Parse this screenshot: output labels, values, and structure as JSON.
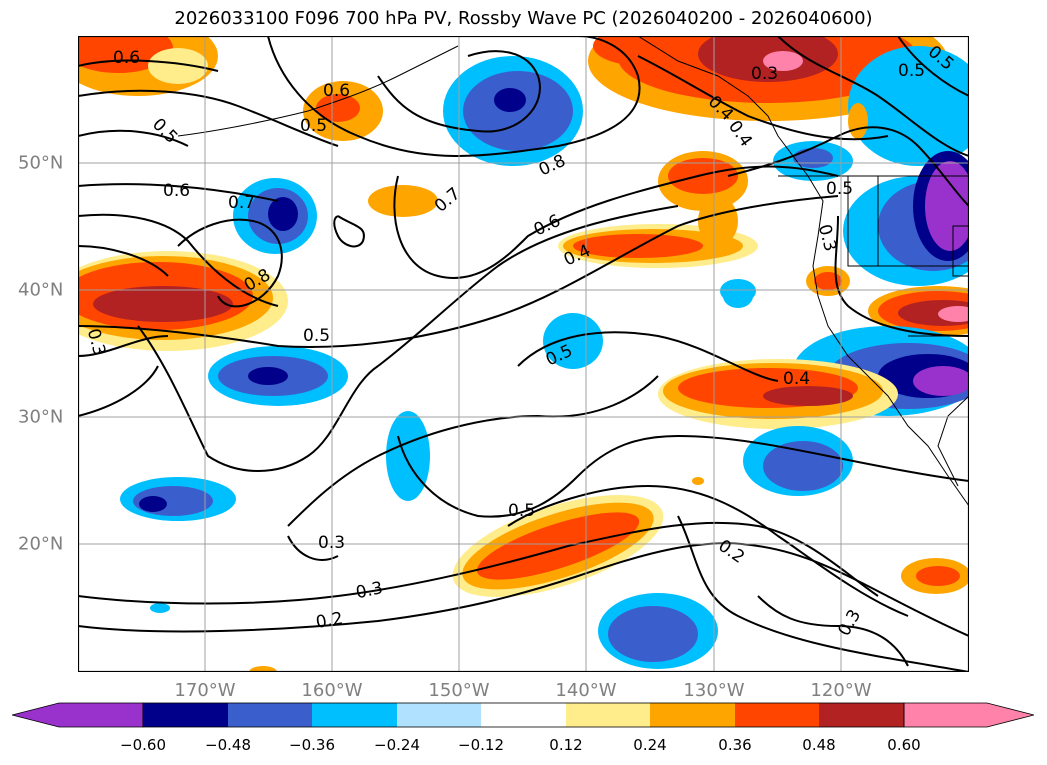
{
  "title": "2026033100 F096 700 hPa PV, Rossby Wave PC (2026040200 - 2026040600)",
  "lon_labels": [
    "170°W",
    "160°W",
    "150°W",
    "140°W",
    "130°W",
    "120°W"
  ],
  "lat_labels": [
    "50°N",
    "40°N",
    "30°N",
    "20°N"
  ],
  "colorbar": {
    "ticks": [
      "−0.60",
      "−0.48",
      "−0.36",
      "−0.24",
      "−0.12",
      "0.12",
      "0.24",
      "0.36",
      "0.48",
      "0.60"
    ],
    "colors": [
      "#9932cc",
      "#00008b",
      "#3a5fcd",
      "#00bfff",
      "#b0e2ff",
      "#ffffff",
      "#ffec8b",
      "#ffa500",
      "#ff4500",
      "#b22222",
      "#ff82ab"
    ]
  },
  "contour_labels": [
    "0.6",
    "0.6",
    "0.5",
    "0.5",
    "0.7",
    "0.8",
    "0.6",
    "0.4",
    "0.3",
    "0.5",
    "0.6",
    "0.7",
    "0.8",
    "0.5",
    "0.3",
    "0.5",
    "0.4",
    "0.3",
    "0.5",
    "0.3",
    "0.2",
    "0.2",
    "0.3",
    "0.3",
    "0.4",
    "0.4",
    "0.5",
    "0.5"
  ]
}
